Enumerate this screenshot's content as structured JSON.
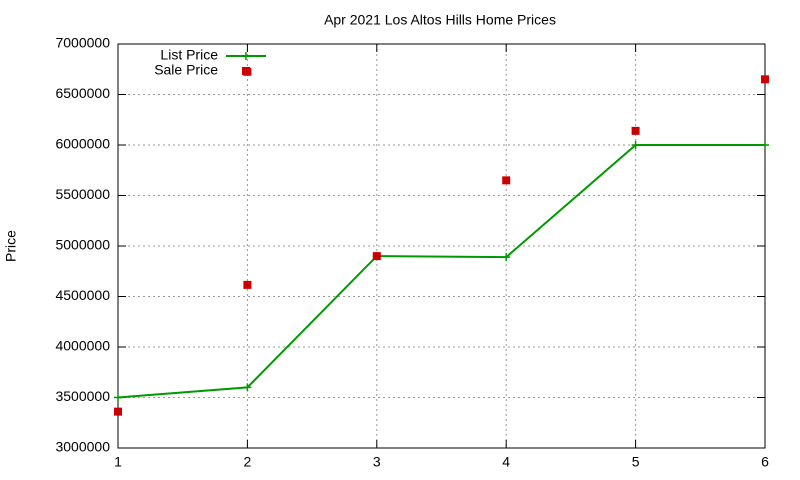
{
  "chart_data": {
    "type": "line",
    "title": "Apr 2021 Los Altos Hills Home Prices",
    "ylabel": "Price",
    "xlim": [
      1,
      6
    ],
    "xticks": [
      1,
      2,
      3,
      4,
      5,
      6
    ],
    "ylim": [
      3000000,
      7000000
    ],
    "yticks": [
      3000000,
      3500000,
      4000000,
      4500000,
      5000000,
      5500000,
      6000000,
      6500000,
      7000000
    ],
    "grid": true,
    "legend": "top-left",
    "series": [
      {
        "name": "List Price",
        "type": "line",
        "color": "#009900",
        "x": [
          1,
          2,
          3,
          4,
          5,
          6
        ],
        "values": [
          3500000,
          3600000,
          4900000,
          4890000,
          6000000,
          6000000
        ]
      },
      {
        "name": "Sale Price",
        "type": "scatter",
        "color": "#cc0000",
        "x": [
          1,
          2,
          2,
          3,
          4,
          5,
          6
        ],
        "values": [
          3360000,
          6725000,
          4615000,
          4900000,
          5650000,
          6140000,
          6650000
        ]
      }
    ]
  }
}
